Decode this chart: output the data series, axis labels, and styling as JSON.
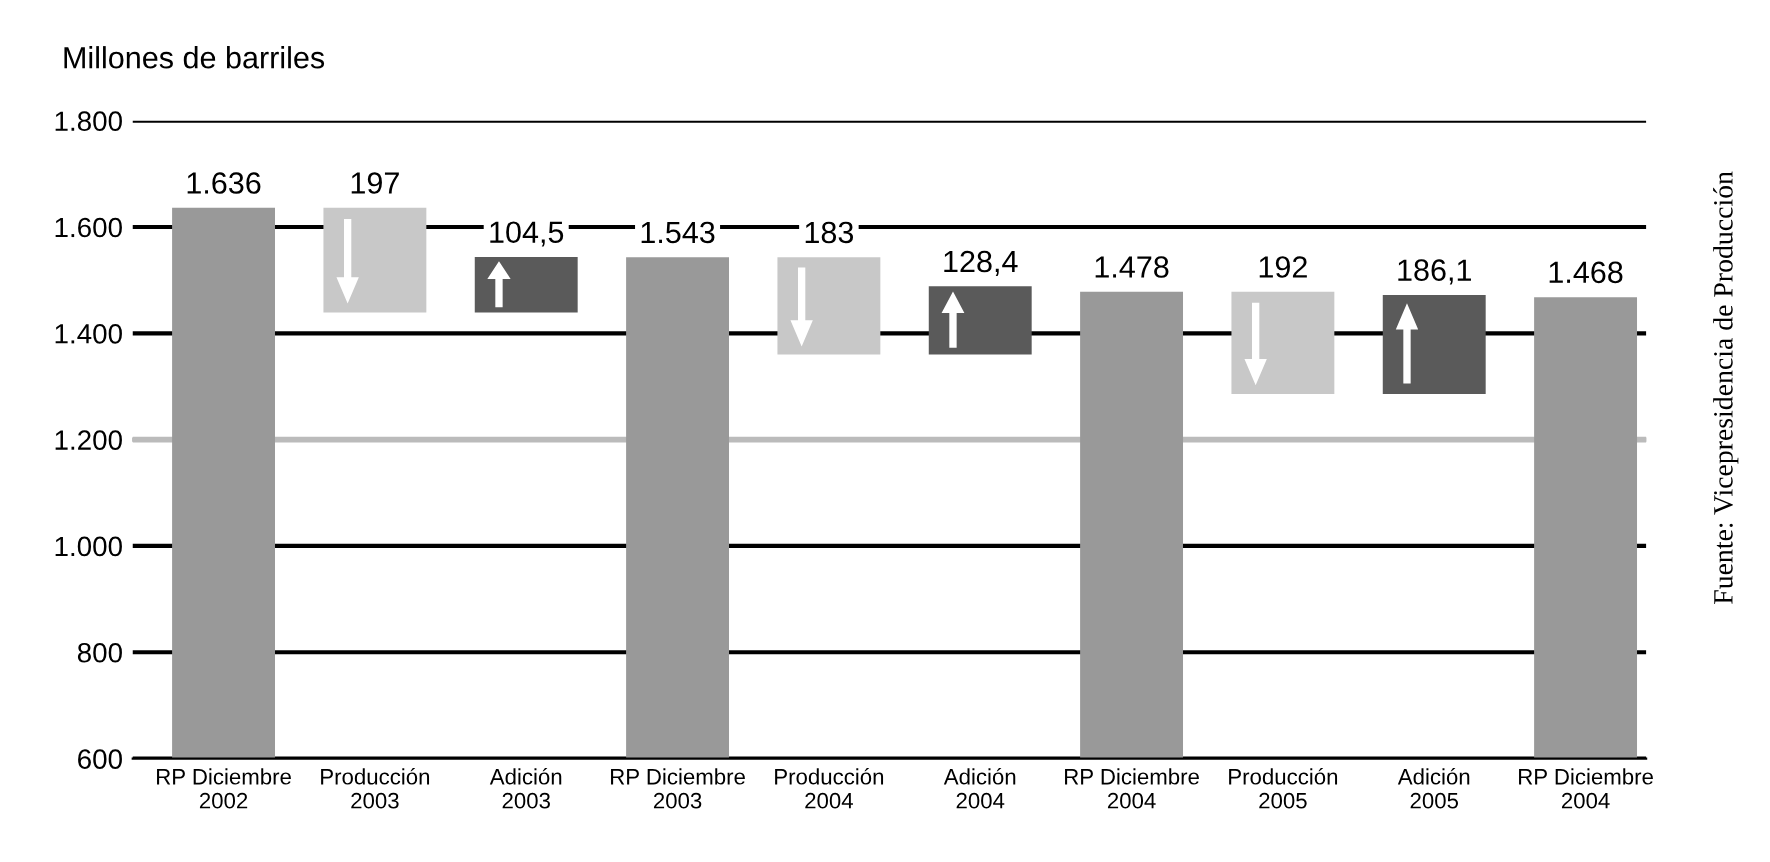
{
  "chart_data": {
    "type": "bar",
    "ylabel": "Millones de barriles",
    "categories": [
      "RP Diciembre\n2002",
      "Producción\n2003",
      "Adición\n2003",
      "RP Diciembre\n2003",
      "Producción\n2004",
      "Adición\n2004",
      "RP Diciembre\n2004",
      "Producción\n2005",
      "Adición\n2005",
      "RP Diciembre\n2004"
    ],
    "values": [
      1636,
      197,
      104.5,
      1543,
      183,
      128.4,
      1478,
      192,
      186.1,
      1468
    ],
    "base": [
      null,
      1439,
      1439,
      null,
      1360,
      1360,
      null,
      1286,
      1286,
      null
    ],
    "colors": [
      "#999999",
      "#c8c8c8",
      "#5a5a5a",
      "#999999",
      "#c8c8c8",
      "#5a5a5a",
      "#999999",
      "#c8c8c8",
      "#5a5a5a",
      "#999999"
    ],
    "value_labels": [
      "1.636",
      "197",
      "104,5",
      "1.543",
      "183",
      "128,4",
      "1.478",
      "192",
      "186,1",
      "1.468"
    ],
    "ylim": [
      600,
      1800
    ],
    "yticks": [
      {
        "value": 600,
        "label": "600"
      },
      {
        "value": 800,
        "label": "800"
      },
      {
        "value": 1000,
        "label": "1.000"
      },
      {
        "value": 1200,
        "label": "1.200"
      },
      {
        "value": 1400,
        "label": "1.400"
      },
      {
        "value": 1600,
        "label": "1.600"
      },
      {
        "value": 1800,
        "label": "1.800"
      }
    ],
    "grid": "y",
    "ref_lines": [
      {
        "axis": "y",
        "value": 1200,
        "label": null,
        "color": "#bbbbbb"
      }
    ],
    "annotations": [
      "Fuente: Vicepresidencia de Producción"
    ]
  }
}
